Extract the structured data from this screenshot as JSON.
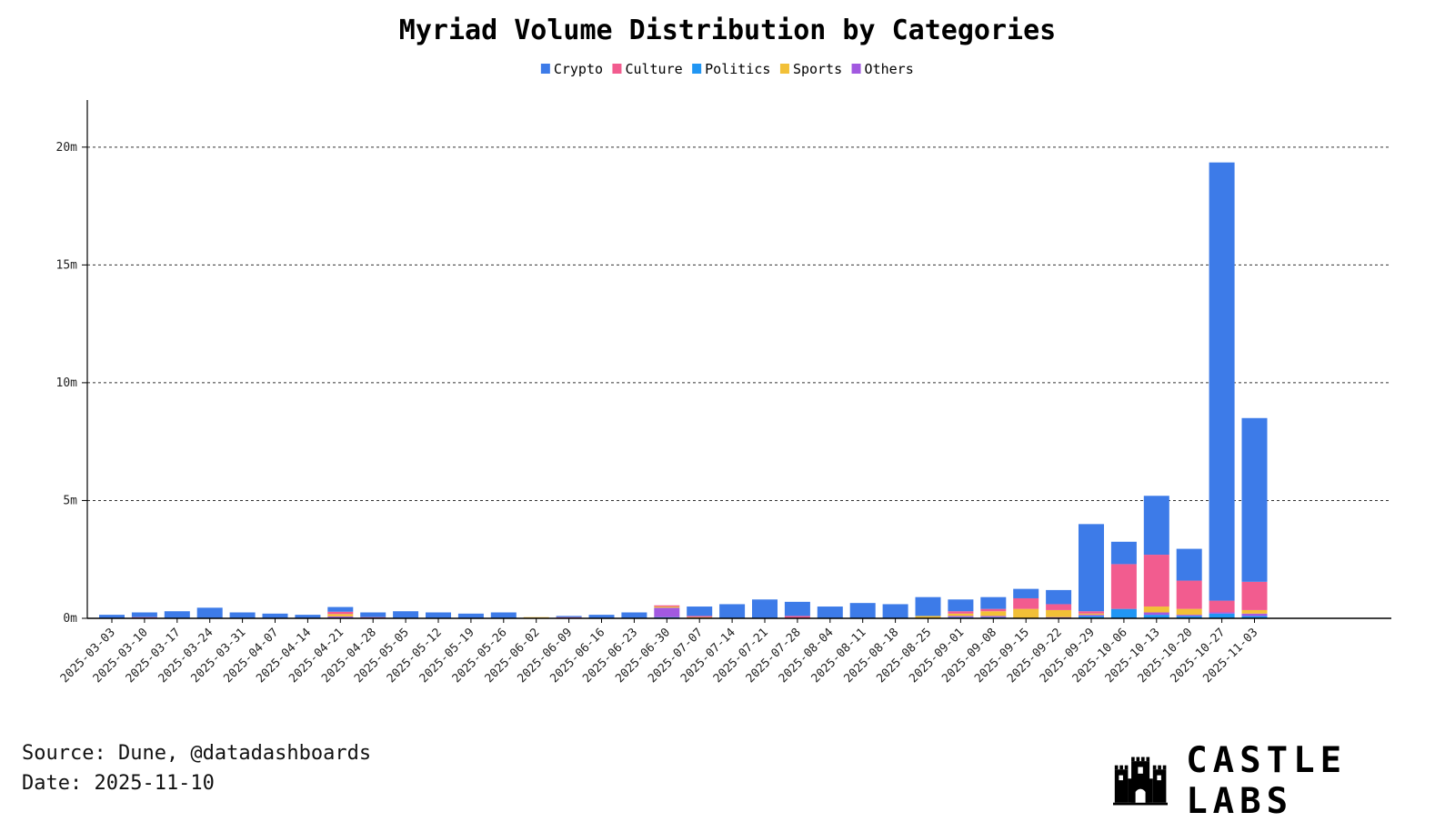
{
  "footer": {
    "source": "Source: Dune, @datadashboards",
    "date": "Date: 2025-11-10"
  },
  "brand": {
    "name": "CASTLE LABS",
    "logo_icon": "castle-icon"
  },
  "chart_data": {
    "type": "bar",
    "stacked": true,
    "title": "Myriad Volume Distribution by Categories",
    "xlabel": "",
    "ylabel": "",
    "ylim": [
      0,
      22000000
    ],
    "yticks": [
      0,
      5000000,
      10000000,
      15000000,
      20000000
    ],
    "ytick_labels": [
      "0m",
      "5m",
      "10m",
      "15m",
      "20m"
    ],
    "grid": "horizontal dashed",
    "legend_position": "top-center",
    "categories": [
      "2025-03-03",
      "2025-03-10",
      "2025-03-17",
      "2025-03-24",
      "2025-03-31",
      "2025-04-07",
      "2025-04-14",
      "2025-04-21",
      "2025-04-28",
      "2025-05-05",
      "2025-05-12",
      "2025-05-19",
      "2025-05-26",
      "2025-06-02",
      "2025-06-09",
      "2025-06-16",
      "2025-06-23",
      "2025-06-30",
      "2025-07-07",
      "2025-07-14",
      "2025-07-21",
      "2025-07-28",
      "2025-08-04",
      "2025-08-11",
      "2025-08-18",
      "2025-08-25",
      "2025-09-01",
      "2025-09-08",
      "2025-09-15",
      "2025-09-22",
      "2025-09-29",
      "2025-10-06",
      "2025-10-13",
      "2025-10-20",
      "2025-10-27",
      "2025-11-03"
    ],
    "series": [
      {
        "name": "Politics",
        "color": "#2196f3",
        "values": [
          0,
          0,
          0,
          0,
          0,
          0,
          0,
          30000,
          0,
          0,
          0,
          0,
          0,
          0,
          0,
          0,
          0,
          50000,
          0,
          0,
          0,
          0,
          0,
          0,
          0,
          0,
          50000,
          50000,
          0,
          0,
          100000,
          400000,
          150000,
          100000,
          200000,
          100000
        ]
      },
      {
        "name": "Others",
        "color": "#a259e0",
        "values": [
          0,
          0,
          0,
          0,
          0,
          0,
          0,
          50000,
          0,
          0,
          0,
          0,
          0,
          0,
          0,
          0,
          0,
          400000,
          0,
          0,
          0,
          0,
          0,
          0,
          0,
          0,
          50000,
          50000,
          0,
          50000,
          50000,
          0,
          100000,
          50000,
          50000,
          100000
        ]
      },
      {
        "name": "Sports",
        "color": "#f2c037",
        "values": [
          0,
          0,
          0,
          0,
          0,
          0,
          0,
          100000,
          0,
          0,
          0,
          0,
          0,
          50000,
          0,
          0,
          0,
          50000,
          50000,
          0,
          0,
          0,
          0,
          0,
          0,
          100000,
          100000,
          200000,
          400000,
          300000,
          50000,
          0,
          250000,
          250000,
          0,
          150000
        ]
      },
      {
        "name": "Culture",
        "color": "#f25c8f",
        "values": [
          0,
          50000,
          0,
          0,
          0,
          0,
          0,
          100000,
          50000,
          0,
          0,
          0,
          0,
          0,
          50000,
          0,
          0,
          50000,
          50000,
          0,
          0,
          100000,
          0,
          0,
          0,
          0,
          100000,
          100000,
          450000,
          250000,
          100000,
          1900000,
          2200000,
          1200000,
          500000,
          1200000
        ]
      },
      {
        "name": "Crypto",
        "color": "#3d7be8",
        "values": [
          150000,
          200000,
          300000,
          450000,
          250000,
          200000,
          150000,
          200000,
          200000,
          300000,
          250000,
          200000,
          250000,
          0,
          50000,
          150000,
          250000,
          0,
          400000,
          600000,
          800000,
          600000,
          500000,
          650000,
          600000,
          800000,
          500000,
          500000,
          400000,
          600000,
          3700000,
          950000,
          2500000,
          1350000,
          18600000,
          6950000
        ]
      }
    ],
    "legend": [
      {
        "name": "Crypto",
        "color": "#3d7be8"
      },
      {
        "name": "Culture",
        "color": "#f25c8f"
      },
      {
        "name": "Politics",
        "color": "#2196f3"
      },
      {
        "name": "Sports",
        "color": "#f2c037"
      },
      {
        "name": "Others",
        "color": "#a259e0"
      }
    ]
  }
}
